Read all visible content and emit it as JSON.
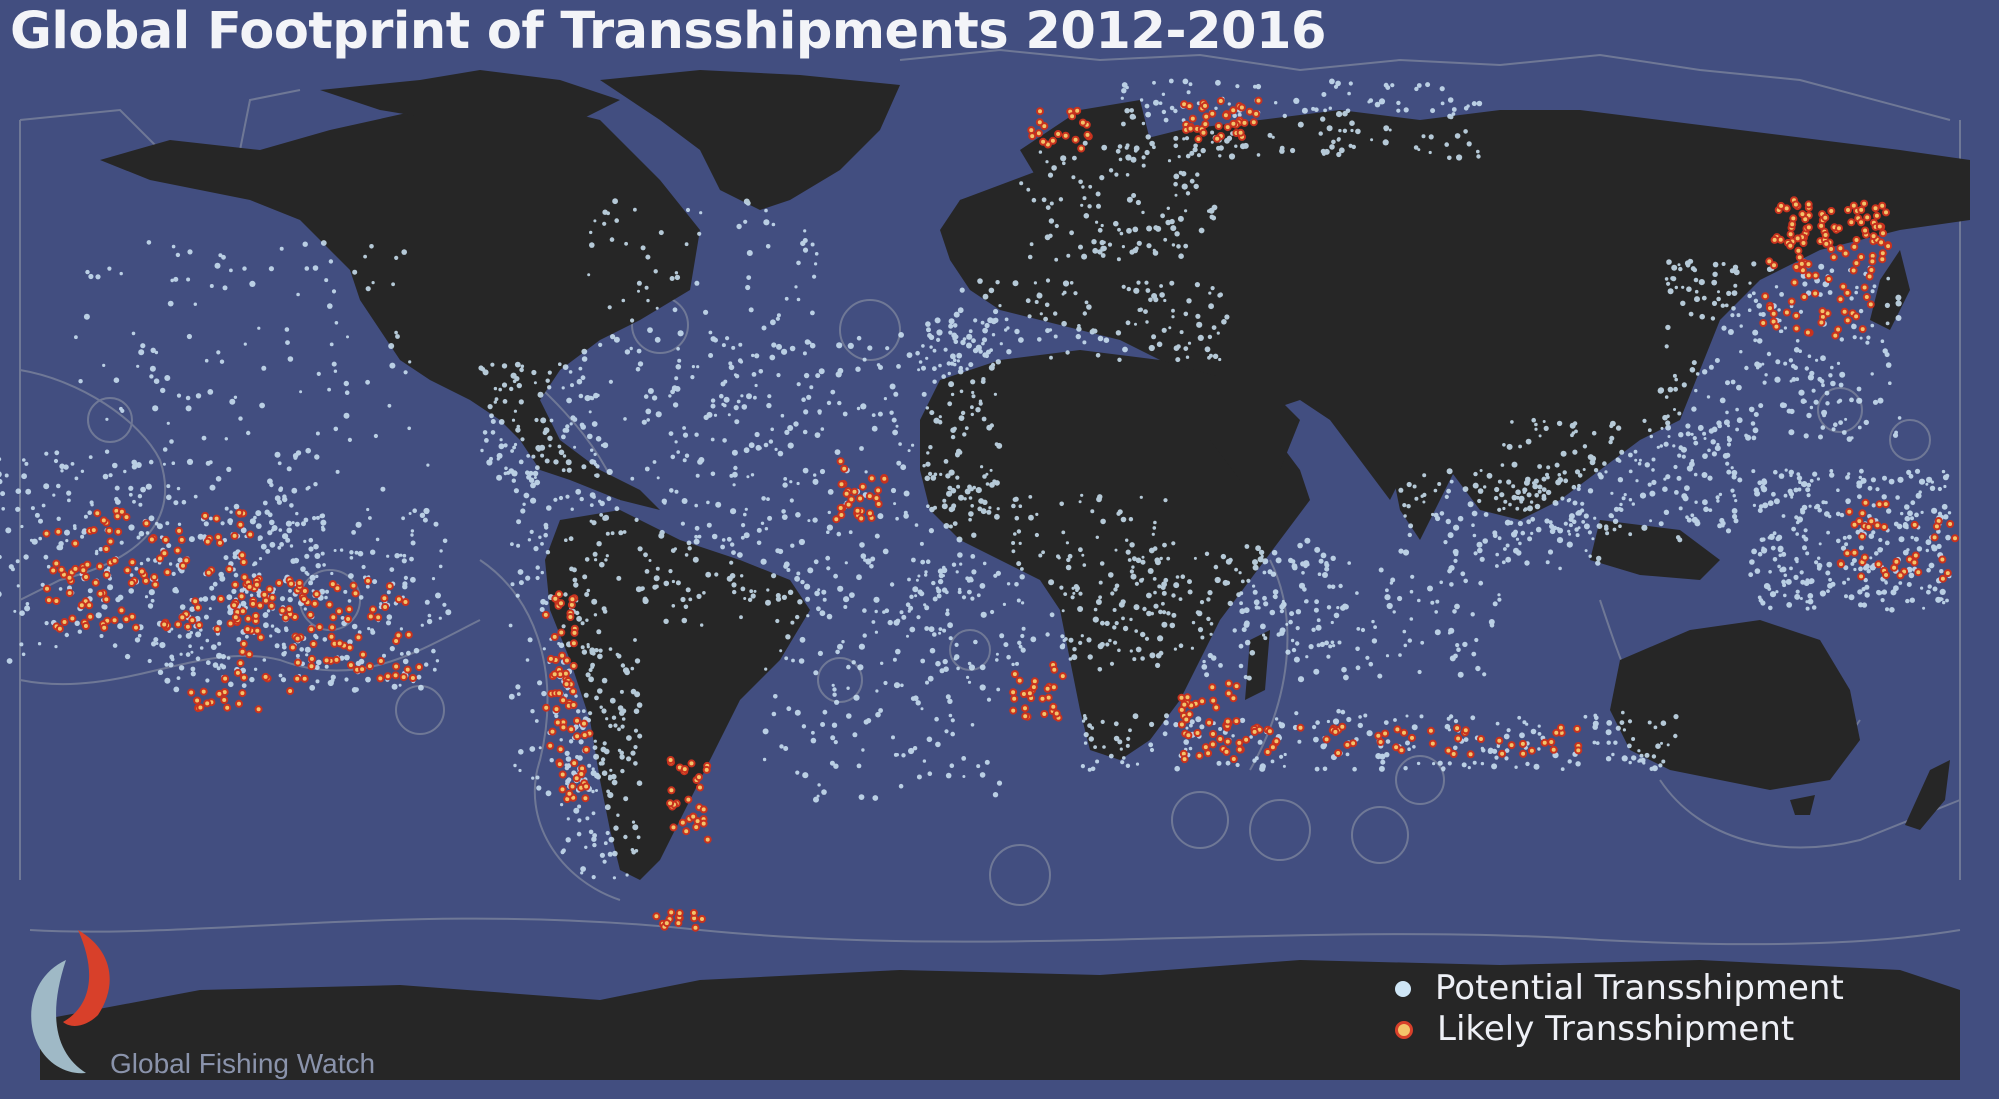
{
  "title": "Global Footprint of Transshipments 2012-2016",
  "legend": {
    "potential": "Potential Transshipment",
    "likely": "Likely Transshipment"
  },
  "brand": {
    "name": "Global Fishing Watch"
  },
  "colors": {
    "ocean": "#424e80",
    "land": "#262626",
    "eez_border": "#8a8f9e",
    "potential": "#cfe6f6",
    "likely_fill": "#f4c46a",
    "likely_stroke": "#c8321e"
  },
  "icons": {
    "logo": "fish-logo-icon"
  }
}
